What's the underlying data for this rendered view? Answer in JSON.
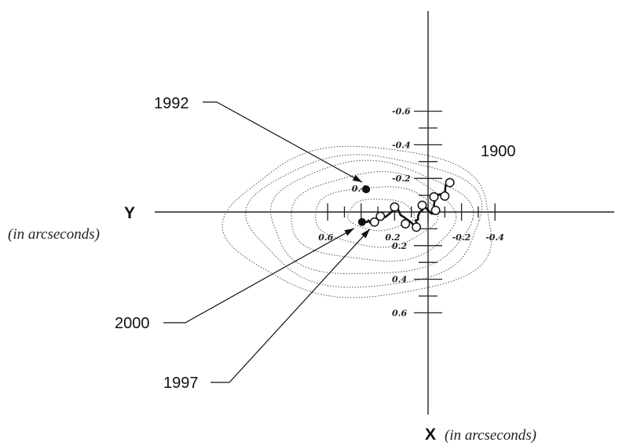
{
  "chart_data": {
    "type": "line",
    "title": "",
    "x_axis": {
      "name": "X",
      "unit": "(in arcseconds)",
      "orientation": "vertical, increasing downward",
      "range": [
        -0.6,
        0.6
      ],
      "tick_labels": [
        "-0.6",
        "-0.4",
        "-0.2",
        "0.2",
        "0.4",
        "0.6"
      ]
    },
    "y_axis": {
      "name": "Y",
      "unit": "(in arcseconds)",
      "orientation": "horizontal, increasing leftward",
      "range": [
        -0.4,
        0.6
      ],
      "tick_labels": [
        "0.6",
        "0.4",
        "0.2",
        "-0.2",
        "-0.4"
      ]
    },
    "series": [
      {
        "style": "thick solid line",
        "color": "#111111",
        "points": [
          {
            "y": -0.13,
            "x": -0.175
          },
          {
            "y": -0.105,
            "x": -0.16
          },
          {
            "y": -0.1,
            "x": -0.11
          },
          {
            "y": -0.07,
            "x": -0.105
          },
          {
            "y": -0.045,
            "x": -0.095
          },
          {
            "y": -0.04,
            "x": -0.07
          },
          {
            "y": -0.035,
            "x": -0.04
          },
          {
            "y": -0.045,
            "x": -0.01
          },
          {
            "y": -0.035,
            "x": 0.01
          },
          {
            "y": -0.02,
            "x": 0.01
          },
          {
            "y": 0.0,
            "x": -0.01
          },
          {
            "y": 0.02,
            "x": -0.035
          },
          {
            "y": 0.035,
            "x": -0.01
          },
          {
            "y": 0.05,
            "x": 0.0
          },
          {
            "y": 0.06,
            "x": 0.025
          },
          {
            "y": 0.06,
            "x": 0.045
          },
          {
            "y": 0.075,
            "x": 0.05
          },
          {
            "y": 0.065,
            "x": 0.07
          },
          {
            "y": 0.07,
            "x": 0.09
          },
          {
            "y": 0.07,
            "x": 0.1
          },
          {
            "y": 0.1,
            "x": 0.062
          },
          {
            "y": 0.145,
            "x": 0.03
          },
          {
            "y": 0.165,
            "x": 0.018
          },
          {
            "y": 0.185,
            "x": -0.03
          },
          {
            "y": 0.2,
            "x": -0.04
          },
          {
            "y": 0.21,
            "x": -0.01
          },
          {
            "y": 0.23,
            "x": 0.01
          },
          {
            "y": 0.255,
            "x": 0.03
          },
          {
            "y": 0.27,
            "x": 0.025
          },
          {
            "y": 0.285,
            "x": 0.04
          },
          {
            "y": 0.3,
            "x": 0.04
          },
          {
            "y": 0.32,
            "x": 0.065
          },
          {
            "y": 0.335,
            "x": 0.06
          },
          {
            "y": 0.345,
            "x": 0.065
          },
          {
            "y": 0.355,
            "x": 0.05
          },
          {
            "y": 0.365,
            "x": 0.06
          },
          {
            "y": 0.38,
            "x": 0.06
          }
        ]
      }
    ],
    "marked_points": {
      "open_circles": [
        {
          "y": -0.13,
          "x": -0.175
        },
        {
          "y": -0.1,
          "x": -0.095
        },
        {
          "y": -0.035,
          "x": -0.09
        },
        {
          "y": -0.045,
          "x": -0.01
        },
        {
          "y": 0.035,
          "x": -0.04
        },
        {
          "y": 0.07,
          "x": 0.09
        },
        {
          "y": 0.135,
          "x": 0.07
        },
        {
          "y": 0.2,
          "x": -0.03
        },
        {
          "y": 0.285,
          "x": 0.025
        },
        {
          "y": 0.32,
          "x": 0.06
        }
      ],
      "filled_points": [
        {
          "label": "1992",
          "y": 0.37,
          "x": -0.135
        },
        {
          "label": "2000",
          "y": 0.395,
          "x": 0.06
        }
      ]
    },
    "annotations": [
      {
        "text": "1900",
        "target": "open circle at y=-0.13, x=-0.175"
      },
      {
        "text": "1992",
        "target": "filled point at y=0.37, x=-0.135"
      },
      {
        "text": "2000",
        "target": "filled point at y=0.395, x=0.06"
      },
      {
        "text": "1997",
        "target": "open circle at y=0.32, x=0.06"
      }
    ],
    "contours": {
      "style": "dotted",
      "count": 6,
      "center": {
        "y": 0.285,
        "x": 0.005
      }
    },
    "grid": false,
    "legend": "none"
  }
}
